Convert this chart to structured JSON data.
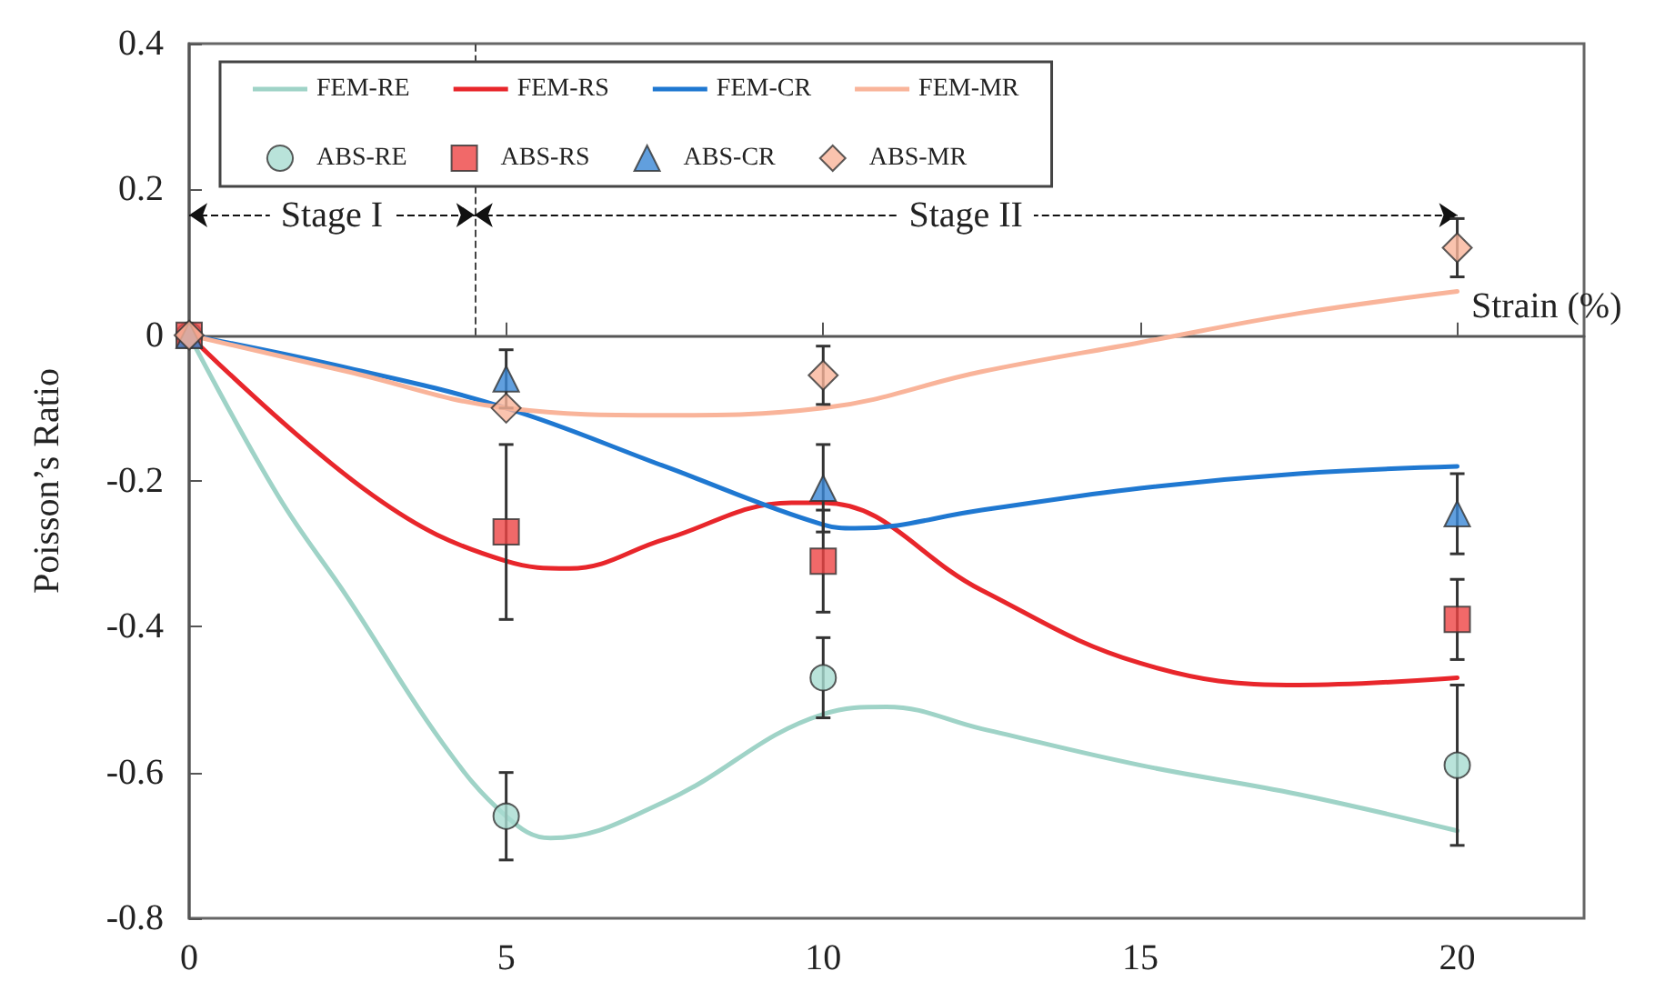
{
  "chart_data": {
    "type": "line",
    "ylabel": "Poisson’s Ratio",
    "xlabel": "Strain (%)",
    "xlim": [
      0,
      22
    ],
    "xticks": [
      0,
      5,
      10,
      15,
      20
    ],
    "ylim": [
      -0.8,
      0.4
    ],
    "yticks": [
      -0.8,
      -0.6,
      -0.4,
      -0.2,
      0,
      0.2,
      0.4
    ],
    "legend": "top",
    "series": [
      {
        "name": "FEM-RE",
        "marker": "none",
        "color": "#9fd3c7",
        "x": [
          0,
          1.4,
          2.5,
          4,
          5,
          5.7,
          7.5,
          10,
          11,
          12.5,
          15,
          17.5,
          20
        ],
        "values": [
          0,
          -0.22,
          -0.36,
          -0.56,
          -0.66,
          -0.69,
          -0.64,
          -0.52,
          -0.51,
          -0.54,
          -0.59,
          -0.63,
          -0.68
        ]
      },
      {
        "name": "FEM-RS",
        "marker": "none",
        "color": "#e8262b",
        "x": [
          0,
          2.9,
          5,
          6,
          7.5,
          9.5,
          10,
          12.5,
          15,
          17.5,
          20
        ],
        "values": [
          0,
          -0.22,
          -0.31,
          -0.32,
          -0.28,
          -0.23,
          -0.23,
          -0.35,
          -0.45,
          -0.48,
          -0.47
        ]
      },
      {
        "name": "FEM-CR",
        "marker": "none",
        "color": "#1f78d1",
        "x": [
          0,
          2.5,
          5,
          7.5,
          10,
          10.5,
          12.5,
          15,
          17.5,
          20
        ],
        "values": [
          0,
          -0.045,
          -0.1,
          -0.18,
          -0.26,
          -0.265,
          -0.24,
          -0.21,
          -0.19,
          -0.18
        ]
      },
      {
        "name": "FEM-MR",
        "marker": "none",
        "color": "#f9b49a",
        "x": [
          0,
          2.5,
          5,
          7.5,
          10,
          12.5,
          15,
          17.5,
          20
        ],
        "values": [
          0,
          -0.05,
          -0.1,
          -0.11,
          -0.1,
          -0.05,
          -0.01,
          0.03,
          0.06
        ]
      },
      {
        "name": "ABS-RE",
        "type": "scatter",
        "marker": "circle",
        "color": "#a8dcd1",
        "x": [
          0,
          5,
          10,
          20
        ],
        "values": [
          0,
          -0.66,
          -0.47,
          -0.59
        ],
        "errors": [
          null,
          0.06,
          0.055,
          0.11
        ]
      },
      {
        "name": "ABS-RS",
        "type": "scatter",
        "marker": "square",
        "color": "#ee4444",
        "x": [
          0,
          5,
          10,
          20
        ],
        "values": [
          0,
          -0.27,
          -0.31,
          -0.39
        ],
        "errors": [
          null,
          0.12,
          0.07,
          0.055
        ]
      },
      {
        "name": "ABS-CR",
        "type": "scatter",
        "marker": "triangle",
        "color": "#3a87d6",
        "x": [
          0,
          5,
          10,
          20
        ],
        "values": [
          0,
          -0.06,
          -0.21,
          -0.245
        ],
        "errors": [
          null,
          0.04,
          0.06,
          0.055
        ]
      },
      {
        "name": "ABS-MR",
        "type": "scatter",
        "marker": "diamond",
        "color": "#f9b49a",
        "x": [
          0,
          5,
          10,
          20
        ],
        "values": [
          0,
          -0.1,
          -0.055,
          0.12
        ],
        "errors": [
          null,
          null,
          0.04,
          0.04
        ]
      }
    ],
    "ref_lines": [
      {
        "axis": "x",
        "value": 4.5,
        "line_style": "dashed"
      }
    ],
    "annotations": [
      "Stage I",
      "Stage II"
    ]
  }
}
